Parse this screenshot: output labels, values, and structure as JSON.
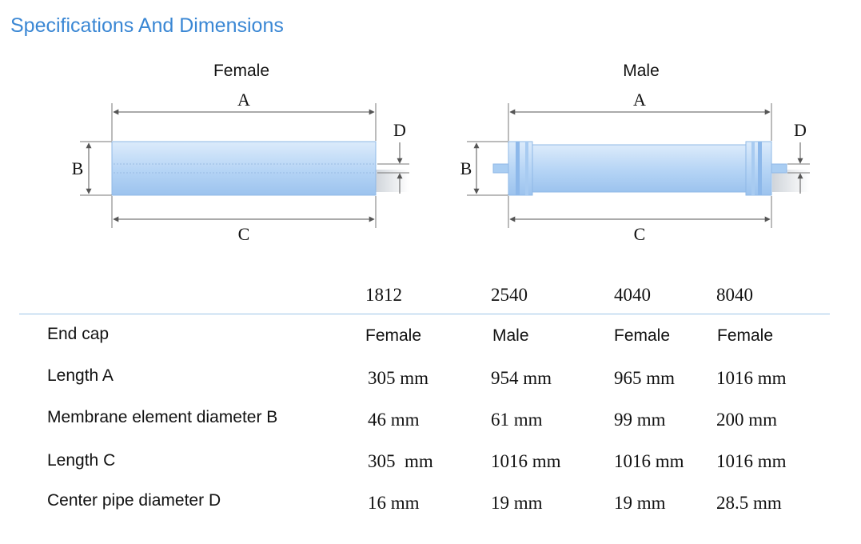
{
  "title": "Specifications And Dimensions",
  "diagram": {
    "female_caption": "Female",
    "male_caption": "Male",
    "labels": {
      "a": "A",
      "b": "B",
      "c": "C",
      "d": "D"
    }
  },
  "table": {
    "headers": [
      "1812",
      "2540",
      "4040",
      "8040"
    ],
    "rows": [
      {
        "label": "End cap",
        "values": [
          "Female",
          "Male",
          "Female",
          "Female"
        ]
      },
      {
        "label": "Length A",
        "values": [
          "305 mm",
          "954 mm",
          "965 mm",
          "1016 mm"
        ]
      },
      {
        "label": "Membrane element diameter B",
        "values": [
          "46 mm",
          "61 mm",
          "99 mm",
          "200 mm"
        ]
      },
      {
        "label": "Length C",
        "values": [
          "305  mm",
          "1016 mm",
          "1016 mm",
          "1016 mm"
        ]
      },
      {
        "label": "Center pipe diameter D",
        "values": [
          "16 mm",
          "19 mm",
          "19 mm",
          "28.5 mm"
        ]
      }
    ]
  }
}
